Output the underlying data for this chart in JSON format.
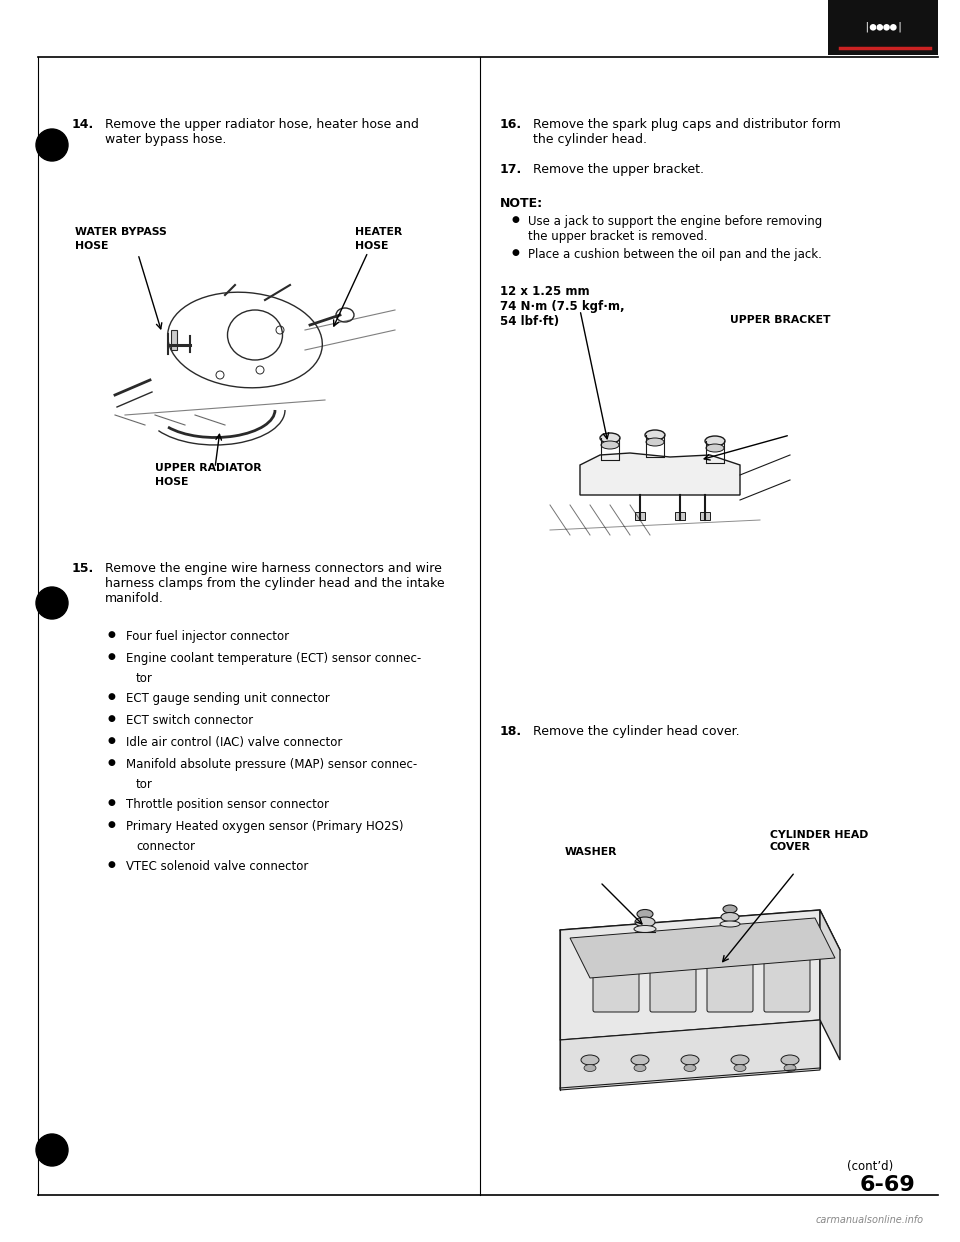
{
  "bg_color": "#ffffff",
  "page_number": "6-69",
  "watermark": "carmanualsonline.info",
  "bullet_dot": "●",
  "step14_num": "14.",
  "step14_text": "Remove the upper radiator hose, heater hose and\nwater bypass hose.",
  "step15_num": "15.",
  "step15_text": "Remove the engine wire harness connectors and wire\nharness clamps from the cylinder head and the intake\nmanifold.",
  "bullets15": [
    "Four fuel injector connector",
    "Engine coolant temperature (ECT) sensor connec-\ntor",
    "ECT gauge sending unit connector",
    "ECT switch connector",
    "Idle air control (IAC) valve connector",
    "Manifold absolute pressure (MAP) sensor connec-\ntor",
    "Throttle position sensor connector",
    "Primary Heated oxygen sensor (Primary HO2S)\nconnector",
    "VTEC solenoid valve connector"
  ],
  "step16_num": "16.",
  "step16_text": "Remove the spark plug caps and distributor form\nthe cylinder head.",
  "step17_num": "17.",
  "step17_text": "Remove the upper bracket.",
  "note_title": "NOTE:",
  "note_bullets": [
    "Use a jack to support the engine before removing\nthe upper bracket is removed.",
    "Place a cushion between the oil pan and the jack."
  ],
  "torque_text": "12 x 1.25 mm\n74 N·m (7.5 kgf·m,\n54 lbf·ft)",
  "upper_bracket_label": "UPPER BRACKET",
  "step18_num": "18.",
  "step18_text": "Remove the cylinder head cover.",
  "washer_label": "WASHER",
  "cyl_head_label": "CYLINDER HEAD\nCOVER",
  "contd": "(cont’d)",
  "fontsize_body": 9.0,
  "fontsize_label": 7.8,
  "fontsize_page": 16
}
